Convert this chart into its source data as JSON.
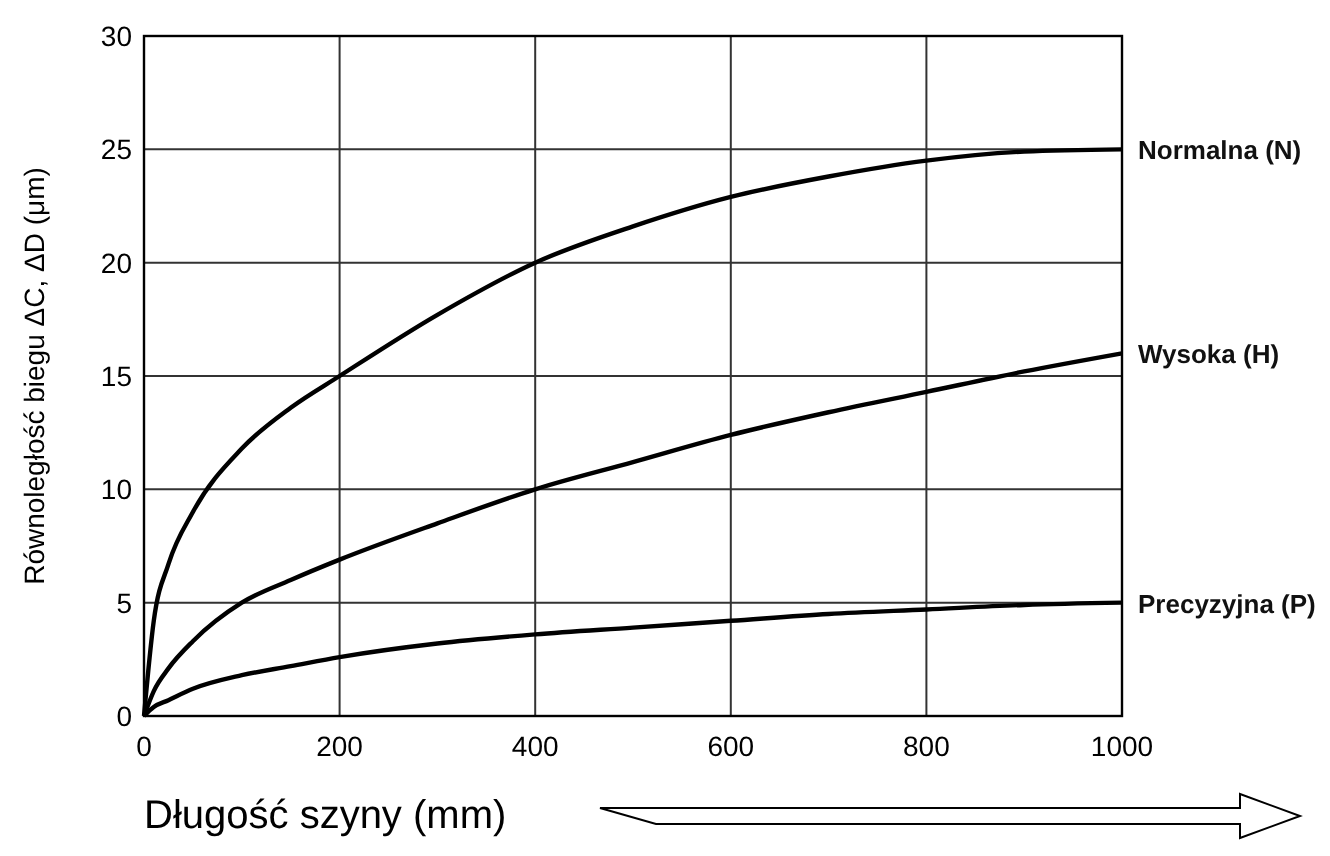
{
  "chart_data": {
    "type": "line",
    "xlabel": "Długość  szyny (mm)",
    "ylabel": "Równoległość biegu  ΔC, ΔD (μm)",
    "xlim": [
      0,
      1000
    ],
    "ylim": [
      0,
      30
    ],
    "xticks": [
      0,
      200,
      400,
      600,
      800,
      1000
    ],
    "yticks": [
      0,
      5,
      10,
      15,
      20,
      25,
      30
    ],
    "grid": true,
    "marker": "none",
    "line_style": "solid",
    "legend": false,
    "x": [
      0,
      10,
      25,
      50,
      100,
      150,
      200,
      300,
      400,
      500,
      600,
      700,
      800,
      900,
      1000
    ],
    "series": [
      {
        "name": "Normalna (N)",
        "color": "#000000",
        "values": [
          0,
          4.2,
          6.7,
          9,
          11.8,
          13.6,
          15,
          17.7,
          20,
          21.6,
          22.9,
          23.8,
          24.5,
          24.9,
          25
        ]
      },
      {
        "name": "Wysoka (H)",
        "color": "#000000",
        "values": [
          0,
          1.1,
          2.1,
          3.3,
          5,
          6,
          6.9,
          8.5,
          10,
          11.2,
          12.4,
          13.4,
          14.3,
          15.2,
          16
        ]
      },
      {
        "name": "Precyzyjna (P)",
        "color": "#000000",
        "values": [
          0,
          0.4,
          0.7,
          1.2,
          1.8,
          2.2,
          2.6,
          3.2,
          3.6,
          3.9,
          4.2,
          4.5,
          4.7,
          4.9,
          5
        ]
      }
    ]
  }
}
